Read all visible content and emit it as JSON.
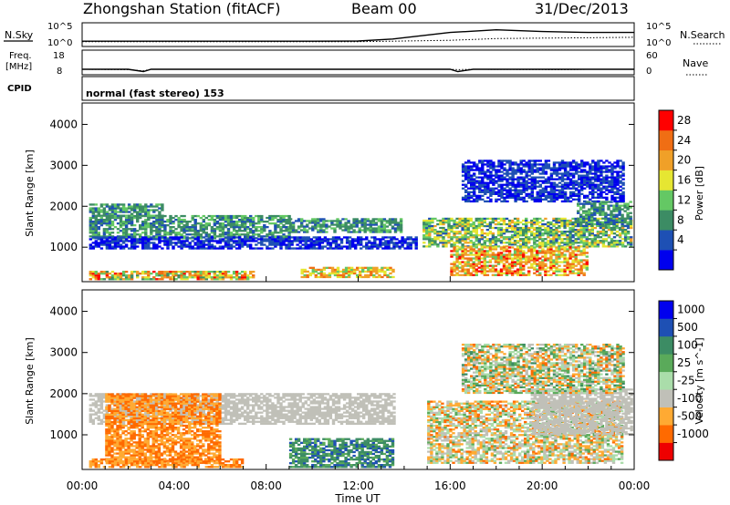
{
  "header": {
    "station": "Zhongshan Station (fitACF)",
    "beam": "Beam 00",
    "date": "31/Dec/2013"
  },
  "panels": {
    "nsky_label": "N.Sky",
    "nsky_ticks": [
      "10^5",
      "10^0"
    ],
    "nsearch_label": "N.Search",
    "nsearch_ticks": [
      "10^5",
      "10^0"
    ],
    "freq_label": [
      "Freq.",
      "[MHz]"
    ],
    "freq_ticks": [
      "18",
      "8"
    ],
    "nave_label": "Nave",
    "nave_ticks": [
      "60",
      "0"
    ],
    "cpid_label": "CPID",
    "cpid_text": "normal (fast stereo) 153"
  },
  "chart_data": [
    {
      "type": "line",
      "title": "",
      "ylabel": "N.Sky",
      "y2label": "N.Search",
      "x": [
        "00:00",
        "02:00",
        "04:00",
        "06:00",
        "08:00",
        "10:00",
        "12:00",
        "13:30",
        "16:00",
        "17:00",
        "18:00",
        "20:00",
        "22:00",
        "24:00"
      ],
      "series": [
        {
          "name": "N.Sky",
          "style": "solid",
          "values": [
            1.0,
            1.0,
            1.0,
            1.0,
            1.0,
            1.0,
            1.05,
            1.5,
            3.0,
            3.3,
            3.6,
            3.2,
            3.0,
            3.0
          ]
        },
        {
          "name": "N.Search",
          "style": "dotted",
          "values": [
            0.9,
            0.9,
            0.9,
            0.9,
            0.9,
            0.9,
            0.9,
            1.0,
            1.2,
            1.4,
            1.6,
            1.7,
            1.8,
            1.9
          ]
        }
      ],
      "ylim": [
        0,
        5
      ]
    },
    {
      "type": "line",
      "ylabel": "Freq. [MHz]",
      "y2label": "Nave",
      "x": [
        "00:00",
        "02:00",
        "02:40",
        "03:00",
        "06:00",
        "12:00",
        "16:00",
        "16:20",
        "17:00",
        "21:00",
        "22:00",
        "24:00"
      ],
      "series": [
        {
          "name": "Freq.",
          "style": "solid",
          "values": [
            10,
            10,
            9,
            10,
            10,
            10,
            10,
            9,
            10,
            10,
            10,
            10
          ]
        },
        {
          "name": "Nave",
          "style": "dotted",
          "values": [
            12,
            11,
            8,
            12,
            12,
            12,
            12,
            11,
            12,
            11,
            12,
            12
          ]
        }
      ],
      "ylim": [
        8,
        18
      ],
      "y2lim": [
        0,
        60
      ]
    },
    {
      "type": "heatmap",
      "ylabel": "Slant Range [km]",
      "colorbar_label": "Power [dB]",
      "xlim": [
        0,
        24
      ],
      "ylim": [
        180,
        4500
      ],
      "yticks": [
        "1000",
        "2000",
        "3000",
        "4000"
      ],
      "colorbar_ticks": [
        "28",
        "24",
        "20",
        "16",
        "12",
        "8",
        "4"
      ],
      "colorbar_values": [
        28,
        24,
        20,
        16,
        12,
        8,
        4
      ],
      "colors": [
        "#0000ee",
        "#1e50b4",
        "#3c8c64",
        "#64c864",
        "#e6e632",
        "#f0a028",
        "#f06e14",
        "#ff0000"
      ],
      "regions": [
        {
          "t0": 0.3,
          "t1": 9.0,
          "r0": 1200,
          "r1": 1750,
          "base": 1,
          "peak": 3
        },
        {
          "t0": 0.3,
          "t1": 3.5,
          "r0": 1750,
          "r1": 2050,
          "base": 1,
          "peak": 3
        },
        {
          "t0": 9.0,
          "t1": 13.8,
          "r0": 1350,
          "r1": 1700,
          "base": 1,
          "peak": 3
        },
        {
          "t0": 0.3,
          "t1": 14.5,
          "r0": 950,
          "r1": 1250,
          "base": 0,
          "peak": 1
        },
        {
          "t0": 0.3,
          "t1": 7.5,
          "r0": 200,
          "r1": 400,
          "base": 2,
          "peak": 7
        },
        {
          "t0": 9.5,
          "t1": 13.5,
          "r0": 250,
          "r1": 500,
          "base": 3,
          "peak": 6
        },
        {
          "t0": 14.8,
          "t1": 23.9,
          "r0": 1000,
          "r1": 1700,
          "base": 1,
          "peak": 5
        },
        {
          "t0": 16.0,
          "t1": 22.0,
          "r0": 300,
          "r1": 1000,
          "base": 3,
          "peak": 7
        },
        {
          "t0": 21.5,
          "t1": 23.9,
          "r0": 1500,
          "r1": 2100,
          "base": 1,
          "peak": 3
        },
        {
          "t0": 16.5,
          "t1": 23.5,
          "r0": 2100,
          "r1": 3100,
          "base": 0,
          "peak": 1
        }
      ]
    },
    {
      "type": "heatmap",
      "ylabel": "Slant Range [km]",
      "colorbar_label": "Velocity [m s^-1]",
      "xlabel": "Time UT",
      "xlim": [
        0,
        24
      ],
      "ylim": [
        180,
        4500
      ],
      "xticks": [
        "00:00",
        "04:00",
        "08:00",
        "12:00",
        "16:00",
        "20:00",
        "00:00"
      ],
      "yticks": [
        "1000",
        "2000",
        "3000",
        "4000"
      ],
      "colorbar_ticks": [
        "1000",
        "500",
        "100",
        "25",
        "-25",
        "-100",
        "-500",
        "-1000"
      ],
      "colorbar_values": [
        1000,
        500,
        100,
        25,
        -25,
        -100,
        -500,
        -1000
      ],
      "colors": [
        "#ee0000",
        "#ff6a00",
        "#ffaa33",
        "#c0c0b8",
        "#aaddaa",
        "#5aaa5a",
        "#3c8c64",
        "#1e50b4",
        "#0000ee"
      ],
      "regions": [
        {
          "t0": 0.3,
          "t1": 13.5,
          "r0": 1250,
          "r1": 2000,
          "base": 3,
          "peak": 3
        },
        {
          "t0": 1.0,
          "t1": 6.0,
          "r0": 300,
          "r1": 2000,
          "base": 1,
          "peak": 2
        },
        {
          "t0": 0.3,
          "t1": 7.0,
          "r0": 200,
          "r1": 400,
          "base": 1,
          "peak": 2
        },
        {
          "t0": 9.0,
          "t1": 13.5,
          "r0": 200,
          "r1": 900,
          "base": 5,
          "peak": 7
        },
        {
          "t0": 15.0,
          "t1": 23.5,
          "r0": 300,
          "r1": 1800,
          "base": 1,
          "peak": 5
        },
        {
          "t0": 19.5,
          "t1": 23.9,
          "r0": 1000,
          "r1": 2100,
          "base": 3,
          "peak": 3
        },
        {
          "t0": 16.5,
          "t1": 23.5,
          "r0": 2000,
          "r1": 3200,
          "base": 1,
          "peak": 6
        }
      ]
    }
  ]
}
